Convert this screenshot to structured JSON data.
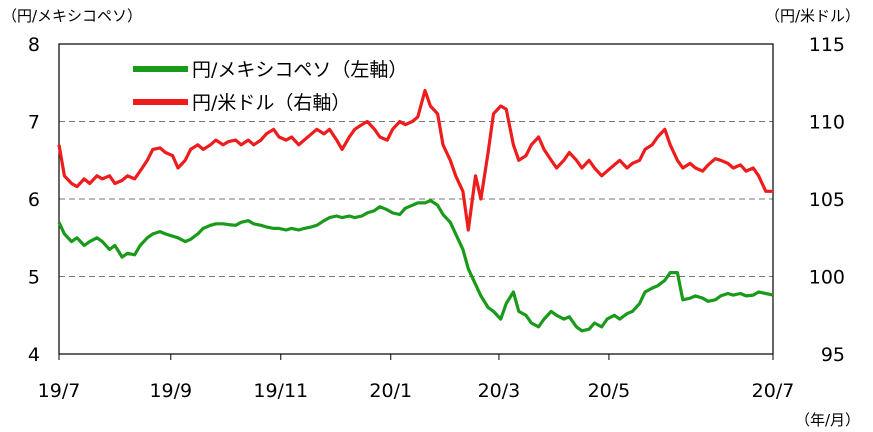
{
  "chart_data": {
    "type": "line",
    "left_unit": "（円/メキシコペソ）",
    "right_unit": "（円/米ドル）",
    "x_unit": "（年/月）",
    "y_left": {
      "min": 4,
      "max": 8,
      "ticks": [
        "4",
        "5",
        "6",
        "7",
        "8"
      ]
    },
    "y_right": {
      "min": 95,
      "max": 115,
      "ticks": [
        "95",
        "100",
        "105",
        "110",
        "115"
      ]
    },
    "x_ticks": [
      "19/7",
      "19/9",
      "19/11",
      "20/1",
      "20/3",
      "20/5",
      "20/7"
    ],
    "grid": "dashed horizontal at 5, 6, 7 (left axis)",
    "legend_position": "top-left",
    "series": [
      {
        "name": "円/メキシコペソ（左軸）",
        "axis": "left",
        "color": "#1a9a1a",
        "points": [
          [
            "2019-07-01",
            5.7
          ],
          [
            "2019-07-04",
            5.55
          ],
          [
            "2019-07-08",
            5.45
          ],
          [
            "2019-07-11",
            5.5
          ],
          [
            "2019-07-15",
            5.4
          ],
          [
            "2019-07-18",
            5.45
          ],
          [
            "2019-07-22",
            5.5
          ],
          [
            "2019-07-25",
            5.45
          ],
          [
            "2019-07-29",
            5.35
          ],
          [
            "2019-08-01",
            5.4
          ],
          [
            "2019-08-05",
            5.25
          ],
          [
            "2019-08-08",
            5.3
          ],
          [
            "2019-08-12",
            5.28
          ],
          [
            "2019-08-15",
            5.4
          ],
          [
            "2019-08-19",
            5.5
          ],
          [
            "2019-08-22",
            5.55
          ],
          [
            "2019-08-26",
            5.58
          ],
          [
            "2019-08-29",
            5.55
          ],
          [
            "2019-09-02",
            5.52
          ],
          [
            "2019-09-05",
            5.5
          ],
          [
            "2019-09-09",
            5.45
          ],
          [
            "2019-09-12",
            5.48
          ],
          [
            "2019-09-16",
            5.55
          ],
          [
            "2019-09-19",
            5.62
          ],
          [
            "2019-09-23",
            5.66
          ],
          [
            "2019-09-26",
            5.68
          ],
          [
            "2019-09-30",
            5.68
          ],
          [
            "2019-10-03",
            5.67
          ],
          [
            "2019-10-07",
            5.66
          ],
          [
            "2019-10-10",
            5.7
          ],
          [
            "2019-10-14",
            5.72
          ],
          [
            "2019-10-17",
            5.68
          ],
          [
            "2019-10-21",
            5.66
          ],
          [
            "2019-10-24",
            5.64
          ],
          [
            "2019-10-28",
            5.62
          ],
          [
            "2019-10-31",
            5.62
          ],
          [
            "2019-11-04",
            5.6
          ],
          [
            "2019-11-07",
            5.62
          ],
          [
            "2019-11-11",
            5.6
          ],
          [
            "2019-11-14",
            5.62
          ],
          [
            "2019-11-18",
            5.64
          ],
          [
            "2019-11-21",
            5.66
          ],
          [
            "2019-11-25",
            5.72
          ],
          [
            "2019-11-28",
            5.76
          ],
          [
            "2019-12-02",
            5.78
          ],
          [
            "2019-12-05",
            5.76
          ],
          [
            "2019-12-09",
            5.78
          ],
          [
            "2019-12-12",
            5.76
          ],
          [
            "2019-12-16",
            5.78
          ],
          [
            "2019-12-19",
            5.82
          ],
          [
            "2019-12-23",
            5.85
          ],
          [
            "2019-12-26",
            5.9
          ],
          [
            "2019-12-30",
            5.86
          ],
          [
            "2020-01-02",
            5.82
          ],
          [
            "2020-01-06",
            5.8
          ],
          [
            "2020-01-09",
            5.88
          ],
          [
            "2020-01-13",
            5.92
          ],
          [
            "2020-01-16",
            5.95
          ],
          [
            "2020-01-20",
            5.95
          ],
          [
            "2020-01-23",
            5.98
          ],
          [
            "2020-01-27",
            5.92
          ],
          [
            "2020-01-30",
            5.8
          ],
          [
            "2020-02-03",
            5.7
          ],
          [
            "2020-02-06",
            5.55
          ],
          [
            "2020-02-10",
            5.35
          ],
          [
            "2020-02-13",
            5.1
          ],
          [
            "2020-02-17",
            4.9
          ],
          [
            "2020-02-20",
            4.75
          ],
          [
            "2020-02-24",
            4.6
          ],
          [
            "2020-02-27",
            4.55
          ],
          [
            "2020-03-02",
            4.45
          ],
          [
            "2020-03-05",
            4.65
          ],
          [
            "2020-03-09",
            4.8
          ],
          [
            "2020-03-12",
            4.55
          ],
          [
            "2020-03-16",
            4.5
          ],
          [
            "2020-03-19",
            4.4
          ],
          [
            "2020-03-23",
            4.35
          ],
          [
            "2020-03-26",
            4.45
          ],
          [
            "2020-03-30",
            4.55
          ],
          [
            "2020-04-02",
            4.5
          ],
          [
            "2020-04-06",
            4.45
          ],
          [
            "2020-04-09",
            4.48
          ],
          [
            "2020-04-13",
            4.35
          ],
          [
            "2020-04-16",
            4.3
          ],
          [
            "2020-04-20",
            4.32
          ],
          [
            "2020-04-23",
            4.4
          ],
          [
            "2020-04-27",
            4.35
          ],
          [
            "2020-04-30",
            4.45
          ],
          [
            "2020-05-04",
            4.5
          ],
          [
            "2020-05-07",
            4.45
          ],
          [
            "2020-05-11",
            4.52
          ],
          [
            "2020-05-14",
            4.55
          ],
          [
            "2020-05-18",
            4.65
          ],
          [
            "2020-05-21",
            4.8
          ],
          [
            "2020-05-25",
            4.85
          ],
          [
            "2020-05-28",
            4.88
          ],
          [
            "2020-06-01",
            4.95
          ],
          [
            "2020-06-04",
            5.05
          ],
          [
            "2020-06-08",
            5.05
          ],
          [
            "2020-06-11",
            4.7
          ],
          [
            "2020-06-15",
            4.72
          ],
          [
            "2020-06-18",
            4.75
          ],
          [
            "2020-06-22",
            4.72
          ],
          [
            "2020-06-25",
            4.68
          ],
          [
            "2020-06-29",
            4.7
          ],
          [
            "2020-07-02",
            4.75
          ],
          [
            "2020-07-06",
            4.78
          ],
          [
            "2020-07-09",
            4.76
          ],
          [
            "2020-07-13",
            4.78
          ],
          [
            "2020-07-16",
            4.75
          ],
          [
            "2020-07-20",
            4.76
          ],
          [
            "2020-07-23",
            4.8
          ],
          [
            "2020-07-27",
            4.78
          ],
          [
            "2020-07-31",
            4.76
          ]
        ]
      },
      {
        "name": "円/米ドル（右軸）",
        "axis": "right",
        "color": "#ee1c1c",
        "points": [
          [
            "2019-07-01",
            108.5
          ],
          [
            "2019-07-04",
            106.5
          ],
          [
            "2019-07-08",
            106.0
          ],
          [
            "2019-07-11",
            105.8
          ],
          [
            "2019-07-15",
            106.3
          ],
          [
            "2019-07-18",
            106.0
          ],
          [
            "2019-07-22",
            106.5
          ],
          [
            "2019-07-25",
            106.3
          ],
          [
            "2019-07-29",
            106.5
          ],
          [
            "2019-08-01",
            106.0
          ],
          [
            "2019-08-05",
            106.2
          ],
          [
            "2019-08-08",
            106.5
          ],
          [
            "2019-08-12",
            106.3
          ],
          [
            "2019-08-15",
            106.8
          ],
          [
            "2019-08-19",
            107.5
          ],
          [
            "2019-08-22",
            108.2
          ],
          [
            "2019-08-26",
            108.3
          ],
          [
            "2019-08-29",
            108.0
          ],
          [
            "2019-09-02",
            107.8
          ],
          [
            "2019-09-05",
            107.0
          ],
          [
            "2019-09-09",
            107.5
          ],
          [
            "2019-09-12",
            108.2
          ],
          [
            "2019-09-16",
            108.5
          ],
          [
            "2019-09-19",
            108.2
          ],
          [
            "2019-09-23",
            108.5
          ],
          [
            "2019-09-26",
            108.8
          ],
          [
            "2019-09-30",
            108.5
          ],
          [
            "2019-10-03",
            108.7
          ],
          [
            "2019-10-07",
            108.8
          ],
          [
            "2019-10-10",
            108.5
          ],
          [
            "2019-10-14",
            108.8
          ],
          [
            "2019-10-17",
            108.5
          ],
          [
            "2019-10-21",
            108.8
          ],
          [
            "2019-10-24",
            109.2
          ],
          [
            "2019-10-28",
            109.5
          ],
          [
            "2019-10-31",
            109.0
          ],
          [
            "2019-11-04",
            108.8
          ],
          [
            "2019-11-07",
            109.0
          ],
          [
            "2019-11-11",
            108.5
          ],
          [
            "2019-11-14",
            108.8
          ],
          [
            "2019-11-18",
            109.2
          ],
          [
            "2019-11-21",
            109.5
          ],
          [
            "2019-11-25",
            109.2
          ],
          [
            "2019-11-28",
            109.5
          ],
          [
            "2019-12-02",
            108.8
          ],
          [
            "2019-12-05",
            108.2
          ],
          [
            "2019-12-09",
            109.0
          ],
          [
            "2019-12-12",
            109.5
          ],
          [
            "2019-12-16",
            109.8
          ],
          [
            "2019-12-19",
            110.0
          ],
          [
            "2019-12-23",
            109.5
          ],
          [
            "2019-12-26",
            109.0
          ],
          [
            "2019-12-30",
            108.8
          ],
          [
            "2020-01-02",
            109.5
          ],
          [
            "2020-01-06",
            110.0
          ],
          [
            "2020-01-09",
            109.8
          ],
          [
            "2020-01-13",
            110.0
          ],
          [
            "2020-01-16",
            110.3
          ],
          [
            "2020-01-20",
            112.0
          ],
          [
            "2020-01-23",
            111.0
          ],
          [
            "2020-01-27",
            110.5
          ],
          [
            "2020-01-30",
            108.5
          ],
          [
            "2020-02-03",
            107.5
          ],
          [
            "2020-02-06",
            106.5
          ],
          [
            "2020-02-10",
            105.5
          ],
          [
            "2020-02-13",
            103.0
          ],
          [
            "2020-02-17",
            106.5
          ],
          [
            "2020-02-20",
            105.0
          ],
          [
            "2020-02-24",
            108.0
          ],
          [
            "2020-02-27",
            110.5
          ],
          [
            "2020-03-02",
            111.0
          ],
          [
            "2020-03-05",
            110.8
          ],
          [
            "2020-03-09",
            108.5
          ],
          [
            "2020-03-12",
            107.5
          ],
          [
            "2020-03-16",
            107.8
          ],
          [
            "2020-03-19",
            108.5
          ],
          [
            "2020-03-23",
            109.0
          ],
          [
            "2020-03-26",
            108.2
          ],
          [
            "2020-03-30",
            107.5
          ],
          [
            "2020-04-02",
            107.0
          ],
          [
            "2020-04-06",
            107.5
          ],
          [
            "2020-04-09",
            108.0
          ],
          [
            "2020-04-13",
            107.5
          ],
          [
            "2020-04-16",
            107.0
          ],
          [
            "2020-04-20",
            107.5
          ],
          [
            "2020-04-23",
            107.0
          ],
          [
            "2020-04-27",
            106.5
          ],
          [
            "2020-04-30",
            106.8
          ],
          [
            "2020-05-04",
            107.2
          ],
          [
            "2020-05-07",
            107.5
          ],
          [
            "2020-05-11",
            107.0
          ],
          [
            "2020-05-14",
            107.3
          ],
          [
            "2020-05-18",
            107.5
          ],
          [
            "2020-05-21",
            108.2
          ],
          [
            "2020-05-25",
            108.5
          ],
          [
            "2020-05-28",
            109.0
          ],
          [
            "2020-06-01",
            109.5
          ],
          [
            "2020-06-04",
            108.5
          ],
          [
            "2020-06-08",
            107.5
          ],
          [
            "2020-06-11",
            107.0
          ],
          [
            "2020-06-15",
            107.3
          ],
          [
            "2020-06-18",
            107.0
          ],
          [
            "2020-06-22",
            106.8
          ],
          [
            "2020-06-25",
            107.2
          ],
          [
            "2020-06-29",
            107.6
          ],
          [
            "2020-07-02",
            107.5
          ],
          [
            "2020-07-06",
            107.3
          ],
          [
            "2020-07-09",
            107.0
          ],
          [
            "2020-07-13",
            107.2
          ],
          [
            "2020-07-16",
            106.8
          ],
          [
            "2020-07-20",
            107.0
          ],
          [
            "2020-07-23",
            106.5
          ],
          [
            "2020-07-27",
            105.5
          ],
          [
            "2020-07-31",
            105.5
          ]
        ]
      }
    ]
  }
}
